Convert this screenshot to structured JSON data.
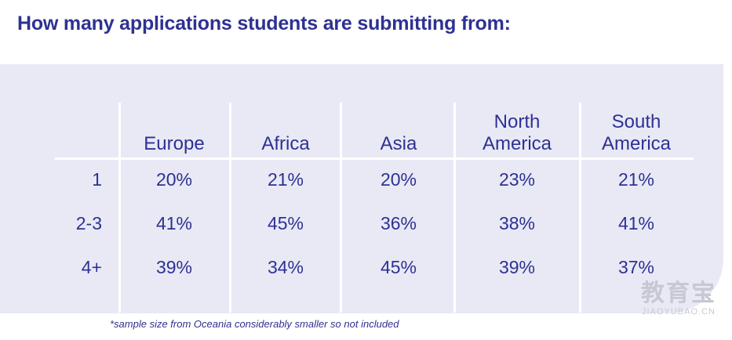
{
  "chart_data": {
    "type": "table",
    "title": "How many applications students are submitting from:",
    "columns": [
      "Europe",
      "Africa",
      "Asia",
      "North America",
      "South America"
    ],
    "column_lines": [
      [
        "Europe"
      ],
      [
        "Africa"
      ],
      [
        "Asia"
      ],
      [
        "North",
        "America"
      ],
      [
        "South",
        "America"
      ]
    ],
    "rows": [
      {
        "label": "1",
        "values": [
          "20%",
          "21%",
          "20%",
          "23%",
          "21%"
        ]
      },
      {
        "label": "2-3",
        "values": [
          "41%",
          "45%",
          "36%",
          "38%",
          "41%"
        ]
      },
      {
        "label": "4+",
        "values": [
          "39%",
          "34%",
          "45%",
          "39%",
          "37%"
        ]
      }
    ],
    "footnote": "*sample size from Oceania considerably smaller so not included"
  },
  "watermark": {
    "main": "教育宝",
    "sub": "JIAOYUBAO.CN"
  },
  "colors": {
    "text": "#2e3192",
    "panel": "#e8e9f5",
    "grid": "#ffffff"
  }
}
